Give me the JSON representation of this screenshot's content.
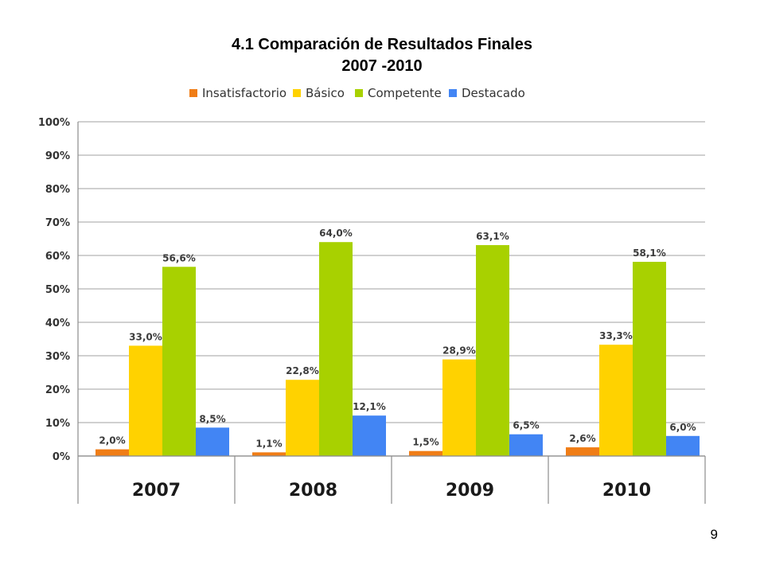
{
  "page": {
    "title_line1": "4.1 Comparación de Resultados Finales",
    "title_line2": "2007 -2010",
    "page_number": "9"
  },
  "chart_data": {
    "type": "bar",
    "title": "4.1 Comparación de Resultados Finales 2007 -2010",
    "categories": [
      "2007",
      "2008",
      "2009",
      "2010"
    ],
    "series": [
      {
        "name": "Insatisfactorio",
        "color": "#F07D16",
        "values": [
          2.0,
          1.1,
          1.5,
          2.6
        ],
        "labels": [
          "2,0%",
          "1,1%",
          "1,5%",
          "2,6%"
        ]
      },
      {
        "name": "Básico",
        "color": "#FFD200",
        "values": [
          33.0,
          22.8,
          28.9,
          33.3
        ],
        "labels": [
          "33,0%",
          "22,8%",
          "28,9%",
          "33,3%"
        ]
      },
      {
        "name": "Competente",
        "color": "#A8D100",
        "values": [
          56.6,
          64.0,
          63.1,
          58.1
        ],
        "labels": [
          "56,6%",
          "64,0%",
          "63,1%",
          "58,1%"
        ]
      },
      {
        "name": "Destacado",
        "color": "#4285F4",
        "values": [
          8.5,
          12.1,
          6.5,
          6.0
        ],
        "labels": [
          "8,5%",
          "12,1%",
          "6,5%",
          "6,0%"
        ]
      }
    ],
    "ylim": [
      0,
      100
    ],
    "yticks": [
      0,
      10,
      20,
      30,
      40,
      50,
      60,
      70,
      80,
      90,
      100
    ],
    "ytick_labels": [
      "0%",
      "10%",
      "20%",
      "30%",
      "40%",
      "50%",
      "60%",
      "70%",
      "80%",
      "90%",
      "100%"
    ],
    "grid": true,
    "legend": "top",
    "xlabel": "",
    "ylabel": ""
  }
}
